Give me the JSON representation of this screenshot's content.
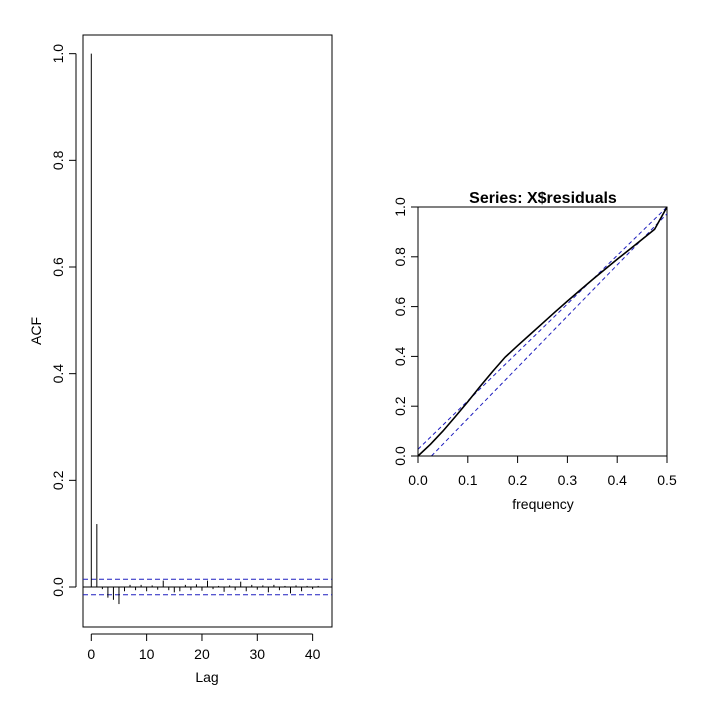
{
  "chart_data": [
    {
      "type": "bar",
      "subtype": "acf",
      "title": "",
      "xlabel": "Lag",
      "ylabel": "ACF",
      "xlim": [
        -1.5,
        43.5
      ],
      "ylim": [
        -0.075,
        1.035
      ],
      "xticks": [
        0,
        10,
        20,
        30,
        40
      ],
      "yticks": [
        0.0,
        0.2,
        0.4,
        0.6,
        0.8,
        1.0
      ],
      "xtick_labels": [
        "0",
        "10",
        "20",
        "30",
        "40"
      ],
      "ytick_labels": [
        "0.0",
        "0.2",
        "0.4",
        "0.6",
        "0.8",
        "1.0"
      ],
      "ci_bounds": [
        0.0145,
        -0.0145
      ],
      "ci_color": "#1f1fbf",
      "lags": [
        0,
        1,
        2,
        3,
        4,
        5,
        6,
        7,
        8,
        9,
        10,
        11,
        12,
        13,
        14,
        15,
        16,
        17,
        18,
        19,
        20,
        21,
        22,
        23,
        24,
        25,
        26,
        27,
        28,
        29,
        30,
        31,
        32,
        33,
        34,
        35,
        36,
        37,
        38,
        39,
        40,
        41
      ],
      "values": [
        1.0,
        0.118,
        -0.004,
        -0.02,
        -0.024,
        -0.032,
        -0.008,
        0.004,
        -0.006,
        0.004,
        -0.008,
        0.003,
        -0.005,
        0.012,
        -0.006,
        -0.01,
        -0.008,
        0.004,
        -0.006,
        0.005,
        -0.007,
        0.012,
        -0.004,
        0.002,
        -0.009,
        0.003,
        -0.006,
        0.01,
        -0.008,
        0.004,
        -0.005,
        0.003,
        -0.01,
        0.004,
        -0.006,
        0.002,
        -0.012,
        0.003,
        -0.008,
        0.002,
        -0.004,
        0.002
      ],
      "grid": false
    },
    {
      "type": "line",
      "subtype": "cumulative-periodogram",
      "title": "Series:  X$residuals",
      "xlabel": "frequency",
      "ylabel": "",
      "xlim": [
        0,
        0.5
      ],
      "ylim": [
        0,
        1.0
      ],
      "xticks": [
        0.0,
        0.1,
        0.2,
        0.3,
        0.4,
        0.5
      ],
      "yticks": [
        0.0,
        0.2,
        0.4,
        0.6,
        0.8,
        1.0
      ],
      "xtick_labels": [
        "0.0",
        "0.1",
        "0.2",
        "0.3",
        "0.4",
        "0.5"
      ],
      "ytick_labels": [
        "0.0",
        "0.2",
        "0.4",
        "0.6",
        "0.8",
        "1.0"
      ],
      "series": [
        {
          "color": "#000000",
          "x": [
            0.0,
            0.025,
            0.05,
            0.075,
            0.1,
            0.125,
            0.15,
            0.175,
            0.2,
            0.225,
            0.25,
            0.275,
            0.3,
            0.325,
            0.35,
            0.375,
            0.4,
            0.425,
            0.45,
            0.475,
            0.5
          ],
          "y": [
            0.0,
            0.047,
            0.1,
            0.158,
            0.218,
            0.28,
            0.34,
            0.397,
            0.443,
            0.488,
            0.533,
            0.578,
            0.622,
            0.665,
            0.708,
            0.749,
            0.79,
            0.83,
            0.87,
            0.91,
            1.0
          ]
        }
      ],
      "reference_lines": {
        "color": "#1f1fbf",
        "upper": [
          [
            0.0,
            0.027
          ],
          [
            0.5,
            1.0
          ]
        ],
        "lower": [
          [
            0.027,
            0.0
          ],
          [
            0.5,
            0.973
          ]
        ]
      },
      "grid": false
    }
  ]
}
